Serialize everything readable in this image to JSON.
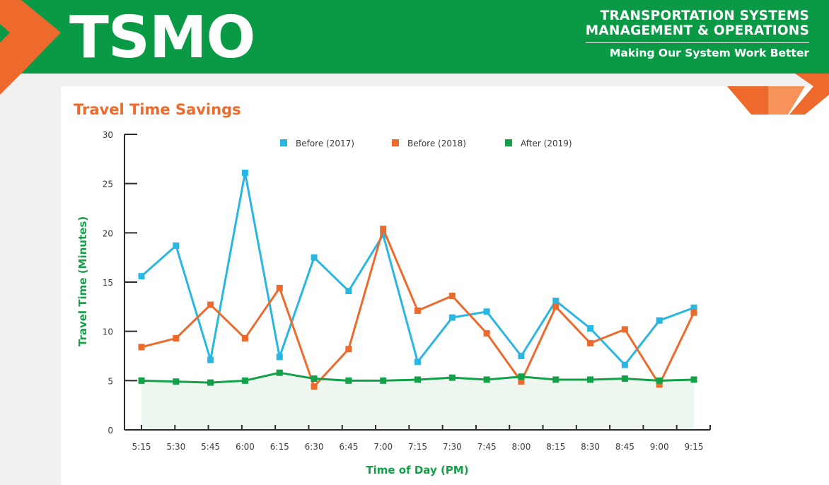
{
  "header": {
    "logo_text": "TSMO",
    "org_line1": "TRANSPORTATION SYSTEMS",
    "org_line2": "MANAGEMENT & OPERATIONS",
    "tagline": "Making Our System Work Better"
  },
  "colors": {
    "brand_green": "#0a9a46",
    "brand_orange": "#ee6a2c",
    "series_2017": "#29b6e3",
    "series_2018": "#ee6a2c",
    "series_2019": "#12a048"
  },
  "chart_data": {
    "type": "line",
    "title": "Travel Time Savings",
    "xlabel": "Time of Day (PM)",
    "ylabel": "Travel Time (Minutes)",
    "ylim": [
      0,
      30
    ],
    "yticks": [
      0,
      5,
      10,
      15,
      20,
      25,
      30
    ],
    "grid": false,
    "legend_position": "top",
    "categories": [
      "5:15",
      "5:30",
      "5:45",
      "6:00",
      "6:15",
      "6:30",
      "6:45",
      "7:00",
      "7:15",
      "7:30",
      "7:45",
      "8:00",
      "8:15",
      "8:30",
      "8:45",
      "9:00",
      "9:15"
    ],
    "series": [
      {
        "name": "Before (2017)",
        "color": "#29b6e3",
        "values": [
          15.6,
          18.7,
          7.1,
          26.1,
          7.4,
          17.5,
          14.1,
          19.8,
          6.9,
          11.4,
          12.0,
          7.5,
          13.1,
          10.3,
          6.6,
          11.1,
          12.4
        ]
      },
      {
        "name": "Before (2018)",
        "color": "#ee6a2c",
        "values": [
          8.4,
          9.3,
          12.7,
          9.3,
          14.4,
          4.4,
          8.2,
          20.4,
          12.1,
          13.6,
          9.8,
          4.9,
          12.5,
          8.8,
          10.2,
          4.6,
          11.9
        ]
      },
      {
        "name": "After (2019)",
        "color": "#12a048",
        "values": [
          5.0,
          4.9,
          4.8,
          5.0,
          5.8,
          5.2,
          5.0,
          5.0,
          5.1,
          5.3,
          5.1,
          5.4,
          5.1,
          5.1,
          5.2,
          5.0,
          5.1
        ]
      }
    ]
  }
}
